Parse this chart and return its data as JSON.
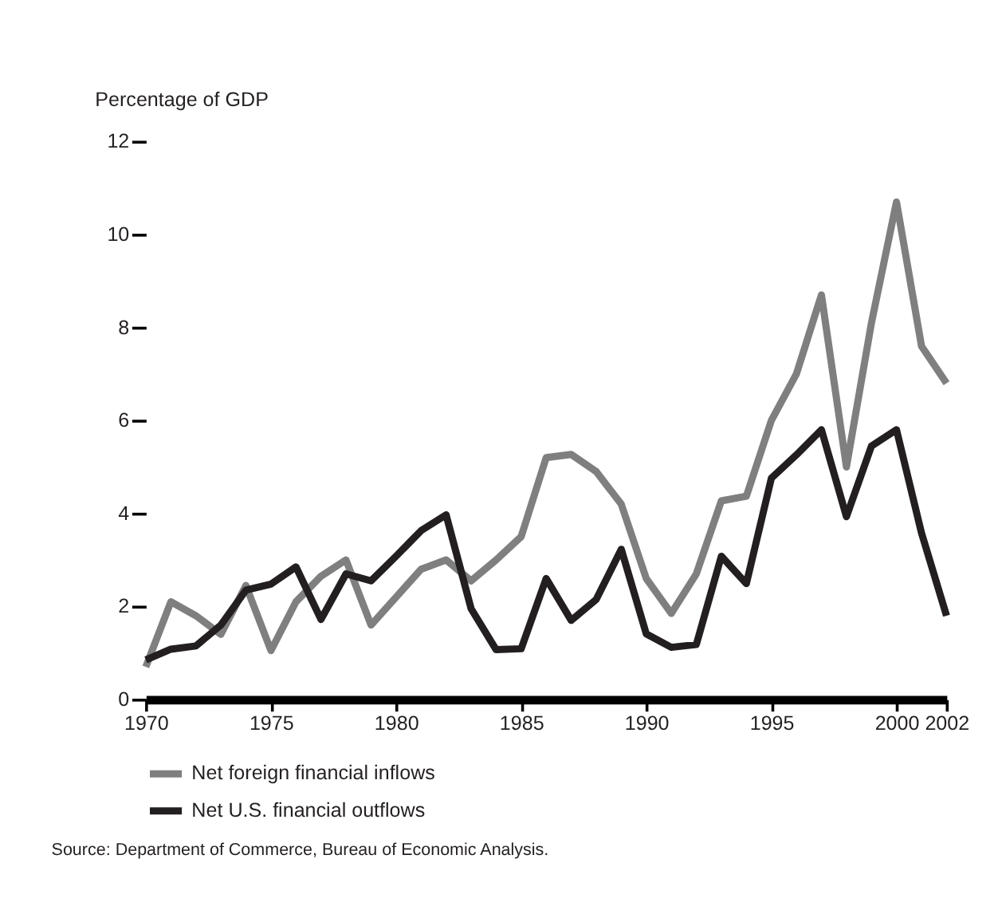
{
  "chart_data": {
    "type": "line",
    "ylabel": "Percentage of GDP",
    "x": [
      1970,
      1971,
      1972,
      1973,
      1974,
      1975,
      1976,
      1977,
      1978,
      1979,
      1980,
      1981,
      1982,
      1983,
      1984,
      1985,
      1986,
      1987,
      1988,
      1989,
      1990,
      1991,
      1992,
      1993,
      1994,
      1995,
      1996,
      1997,
      1998,
      1999,
      2000,
      2001,
      2002
    ],
    "series": [
      {
        "name": "Net foreign financial inflows",
        "color": "#7f7f7f",
        "values": [
          0.7,
          2.1,
          1.8,
          1.4,
          2.45,
          1.05,
          2.1,
          2.65,
          3.0,
          1.6,
          2.2,
          2.8,
          3.0,
          2.55,
          3.0,
          3.5,
          5.2,
          5.27,
          4.9,
          4.2,
          2.6,
          1.85,
          2.7,
          4.27,
          4.37,
          6.0,
          7.0,
          8.7,
          5.0,
          8.1,
          10.7,
          7.6,
          6.8
        ]
      },
      {
        "name": "Net U.S. financial outflows",
        "color": "#231f20",
        "values": [
          0.85,
          1.08,
          1.15,
          1.6,
          2.35,
          2.48,
          2.85,
          1.72,
          2.7,
          2.55,
          3.08,
          3.63,
          3.97,
          1.95,
          1.07,
          1.09,
          2.6,
          1.7,
          2.15,
          3.23,
          1.41,
          1.12,
          1.18,
          3.08,
          2.49,
          4.76,
          5.26,
          5.8,
          3.93,
          5.45,
          5.8,
          3.58,
          1.8
        ]
      }
    ],
    "xlim": [
      1970,
      2002
    ],
    "xticks": [
      1970,
      1975,
      1980,
      1985,
      1990,
      1995,
      2000,
      2002
    ],
    "ylim": [
      0,
      12
    ],
    "yticks": [
      0,
      2,
      4,
      6,
      8,
      10,
      12
    ],
    "grid": false,
    "legend": "bottom",
    "marker": "none",
    "line_style": "solid",
    "annotations": [
      "Source: Department of Commerce, Bureau of Economic Analysis."
    ]
  }
}
